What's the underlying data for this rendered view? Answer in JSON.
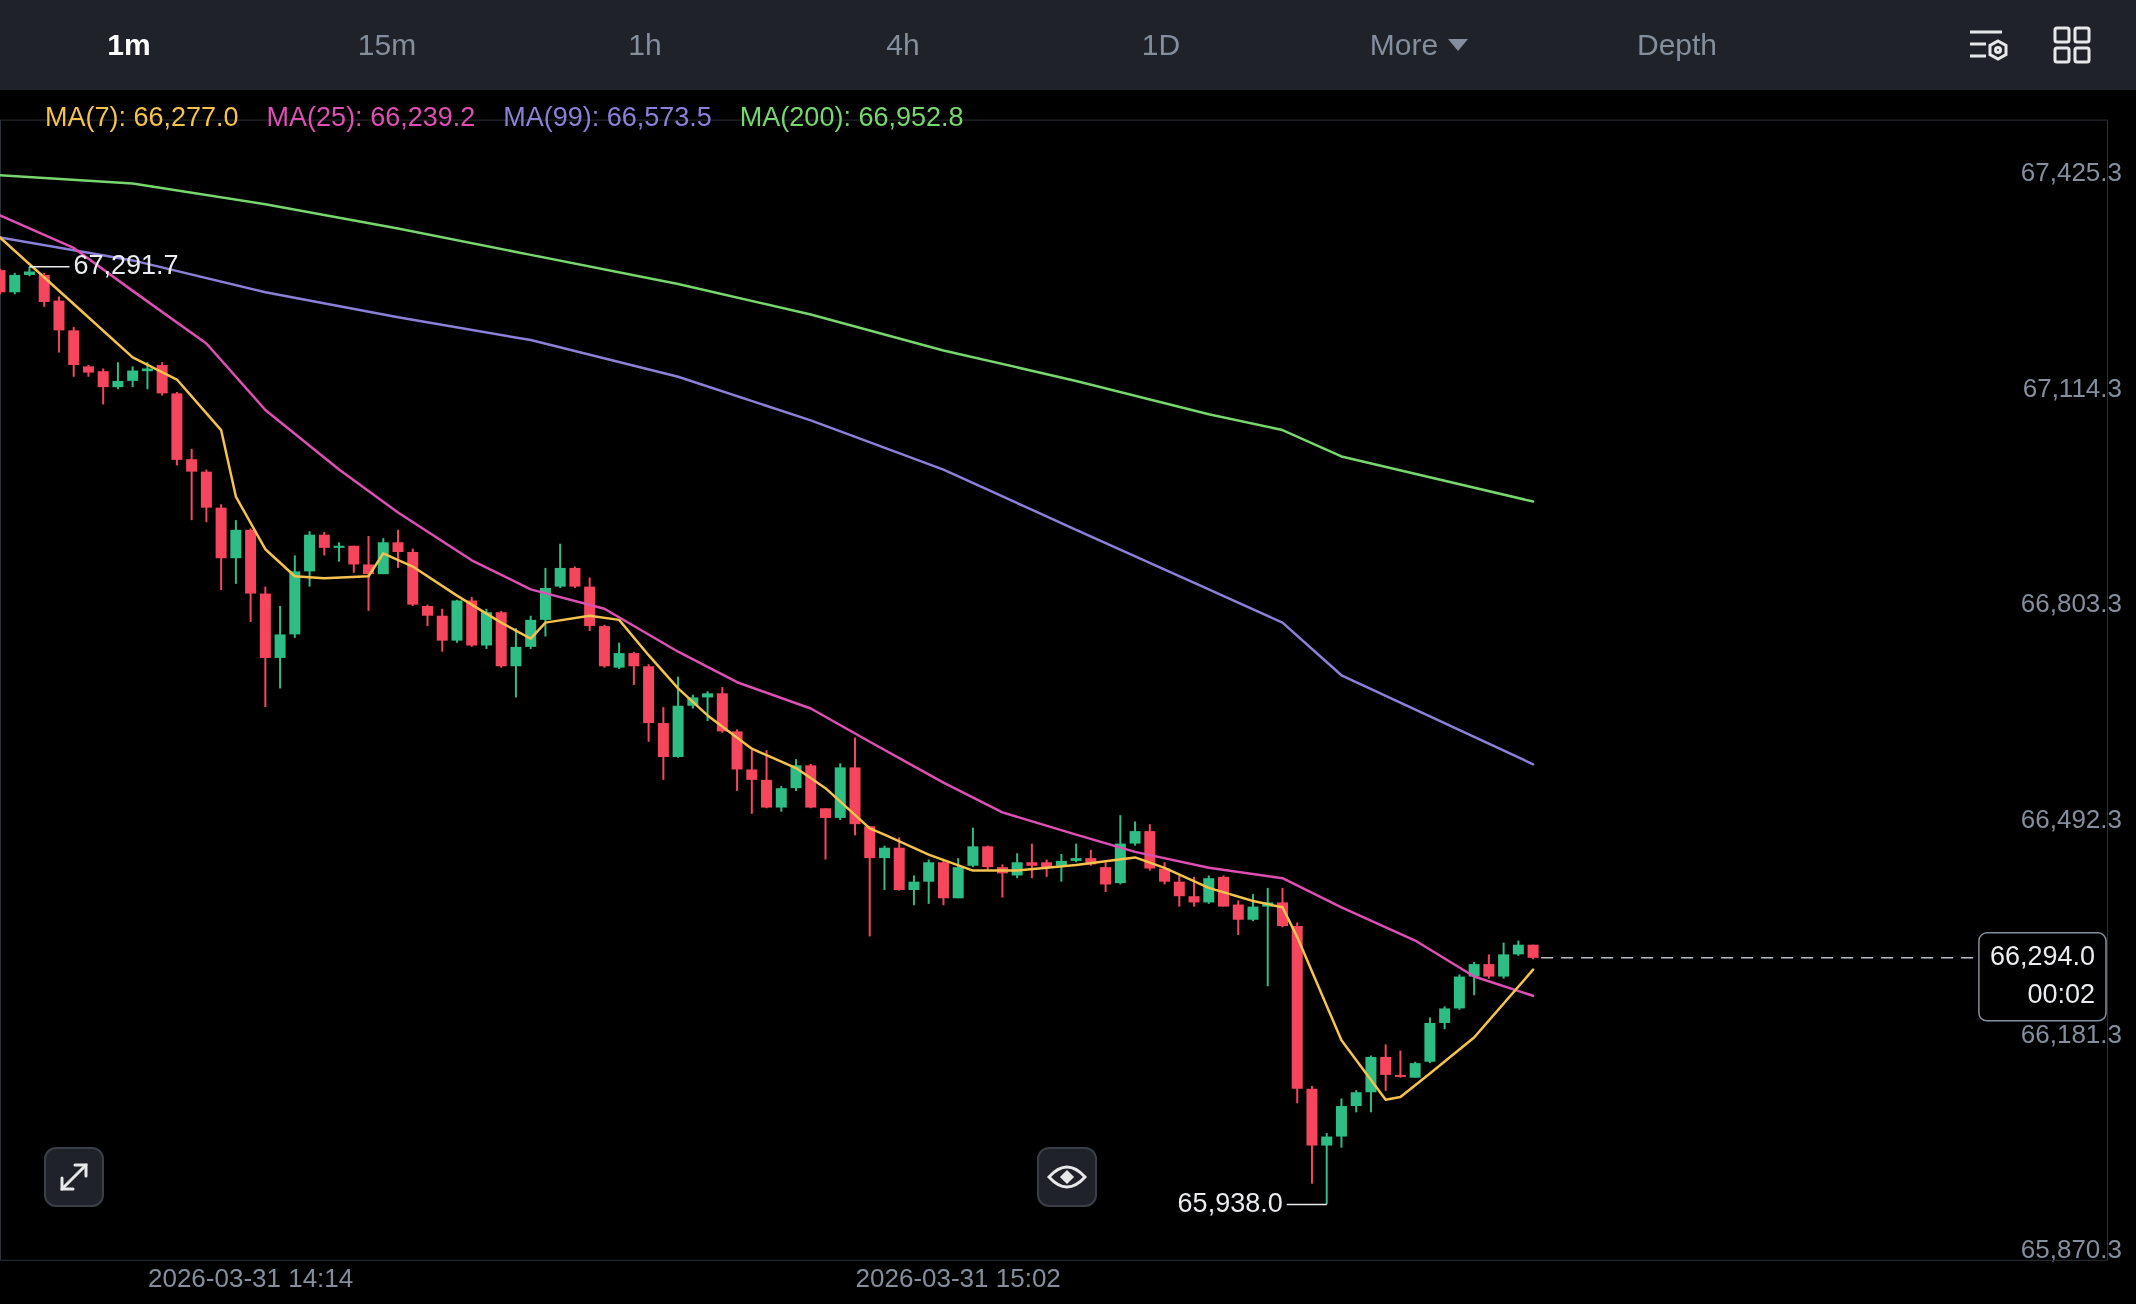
{
  "chart_data": {
    "type": "candlestick",
    "annotations": [
      "1m",
      "15m",
      "1h",
      "4h",
      "1D",
      "More",
      "Depth",
      {
        "text": "67,291.7",
        "x": "2026-03-31T13:59",
        "y": 67291.7
      },
      {
        "text": "65,938.0",
        "x": "2026-03-31T15:27",
        "y": 65938.0
      }
    ],
    "x": [
      "2026-03-31T13:57",
      "2026-03-31T13:58",
      "2026-03-31T13:59",
      "2026-03-31T14:00",
      "2026-03-31T14:01",
      "2026-03-31T14:02",
      "2026-03-31T14:03",
      "2026-03-31T14:04",
      "2026-03-31T14:05",
      "2026-03-31T14:06",
      "2026-03-31T14:07",
      "2026-03-31T14:08",
      "2026-03-31T14:09",
      "2026-03-31T14:10",
      "2026-03-31T14:11",
      "2026-03-31T14:12",
      "2026-03-31T14:13",
      "2026-03-31T14:14",
      "2026-03-31T14:15",
      "2026-03-31T14:16",
      "2026-03-31T14:17",
      "2026-03-31T14:18",
      "2026-03-31T14:19",
      "2026-03-31T14:20",
      "2026-03-31T14:21",
      "2026-03-31T14:22",
      "2026-03-31T14:23",
      "2026-03-31T14:24",
      "2026-03-31T14:25",
      "2026-03-31T14:26",
      "2026-03-31T14:27",
      "2026-03-31T14:28",
      "2026-03-31T14:29",
      "2026-03-31T14:30",
      "2026-03-31T14:31",
      "2026-03-31T14:32",
      "2026-03-31T14:33",
      "2026-03-31T14:34",
      "2026-03-31T14:35",
      "2026-03-31T14:36",
      "2026-03-31T14:37",
      "2026-03-31T14:38",
      "2026-03-31T14:39",
      "2026-03-31T14:40",
      "2026-03-31T14:41",
      "2026-03-31T14:42",
      "2026-03-31T14:43",
      "2026-03-31T14:44",
      "2026-03-31T14:45",
      "2026-03-31T14:46",
      "2026-03-31T14:47",
      "2026-03-31T14:48",
      "2026-03-31T14:49",
      "2026-03-31T14:50",
      "2026-03-31T14:51",
      "2026-03-31T14:52",
      "2026-03-31T14:53",
      "2026-03-31T14:54",
      "2026-03-31T14:55",
      "2026-03-31T14:56",
      "2026-03-31T14:57",
      "2026-03-31T14:58",
      "2026-03-31T14:59",
      "2026-03-31T15:00",
      "2026-03-31T15:01",
      "2026-03-31T15:02",
      "2026-03-31T15:03",
      "2026-03-31T15:04",
      "2026-03-31T15:05",
      "2026-03-31T15:06",
      "2026-03-31T15:07",
      "2026-03-31T15:08",
      "2026-03-31T15:09",
      "2026-03-31T15:10",
      "2026-03-31T15:11",
      "2026-03-31T15:12",
      "2026-03-31T15:13",
      "2026-03-31T15:14",
      "2026-03-31T15:15",
      "2026-03-31T15:16",
      "2026-03-31T15:17",
      "2026-03-31T15:18",
      "2026-03-31T15:19",
      "2026-03-31T15:20",
      "2026-03-31T15:21",
      "2026-03-31T15:22",
      "2026-03-31T15:23",
      "2026-03-31T15:24",
      "2026-03-31T15:25",
      "2026-03-31T15:26",
      "2026-03-31T15:27",
      "2026-03-31T15:28",
      "2026-03-31T15:29",
      "2026-03-31T15:30",
      "2026-03-31T15:31",
      "2026-03-31T15:32",
      "2026-03-31T15:33",
      "2026-03-31T15:34",
      "2026-03-31T15:35",
      "2026-03-31T15:36",
      "2026-03-31T15:37",
      "2026-03-31T15:38",
      "2026-03-31T15:39",
      "2026-03-31T15:40",
      "2026-03-31T15:41"
    ],
    "ohlc": [
      [
        67287,
        67289,
        67252,
        67255
      ],
      [
        67255,
        67283,
        67252,
        67280
      ],
      [
        67280,
        67291.7,
        67278,
        67285
      ],
      [
        67280,
        67283,
        67234,
        67241
      ],
      [
        67243,
        67249,
        67168,
        67200
      ],
      [
        67200,
        67205,
        67133,
        67150
      ],
      [
        67148,
        67150,
        67133,
        67139
      ],
      [
        67141,
        67145,
        67093,
        67118
      ],
      [
        67118,
        67154,
        67115,
        67127
      ],
      [
        67127,
        67148,
        67118,
        67142
      ],
      [
        67141,
        67154,
        67115,
        67145
      ],
      [
        67150,
        67154,
        67106,
        67109
      ],
      [
        67109,
        67111,
        67005,
        67013
      ],
      [
        67014,
        67029,
        66926,
        66996
      ],
      [
        66996,
        66999,
        66923,
        66944
      ],
      [
        66944,
        66949,
        66825,
        66871
      ],
      [
        66871,
        66926,
        66834,
        66912
      ],
      [
        66912,
        66914,
        66779,
        66820
      ],
      [
        66820,
        66830,
        66656,
        66727
      ],
      [
        66727,
        66802,
        66683,
        66761
      ],
      [
        66761,
        66875,
        66756,
        66852
      ],
      [
        66852,
        66910,
        66830,
        66905
      ],
      [
        66905,
        66909,
        66875,
        66886
      ],
      [
        66886,
        66894,
        66866,
        66889
      ],
      [
        66889,
        66889,
        66850,
        66862
      ],
      [
        66862,
        66903,
        66795,
        66848
      ],
      [
        66848,
        66900,
        66848,
        66894
      ],
      [
        66894,
        66912,
        66857,
        66880
      ],
      [
        66880,
        66885,
        66802,
        66804
      ],
      [
        66802,
        66804,
        66773,
        66788
      ],
      [
        66788,
        66798,
        66736,
        66752
      ],
      [
        66752,
        66811,
        66749,
        66810
      ],
      [
        66810,
        66815,
        66743,
        66745
      ],
      [
        66745,
        66798,
        66740,
        66793
      ],
      [
        66793,
        66795,
        66713,
        66715
      ],
      [
        66715,
        66770,
        66670,
        66743
      ],
      [
        66743,
        66788,
        66740,
        66782
      ],
      [
        66782,
        66857,
        66758,
        66828
      ],
      [
        66830,
        66892,
        66828,
        66857
      ],
      [
        66857,
        66859,
        66828,
        66830
      ],
      [
        66830,
        66843,
        66766,
        66773
      ],
      [
        66773,
        66775,
        66713,
        66715
      ],
      [
        66713,
        66749,
        66711,
        66734
      ],
      [
        66734,
        66736,
        66688,
        66715
      ],
      [
        66715,
        66718,
        66606,
        66633
      ],
      [
        66633,
        66656,
        66551,
        66584
      ],
      [
        66584,
        66700,
        66583,
        66658
      ],
      [
        66658,
        66674,
        66654,
        66670
      ],
      [
        66670,
        66679,
        66636,
        66676
      ],
      [
        66676,
        66685,
        66619,
        66621
      ],
      [
        66621,
        66624,
        66535,
        66566
      ],
      [
        66566,
        66594,
        66502,
        66551
      ],
      [
        66551,
        66594,
        66510,
        66511
      ],
      [
        66511,
        66542,
        66505,
        66539
      ],
      [
        66539,
        66581,
        66535,
        66572
      ],
      [
        66572,
        66574,
        66510,
        66511
      ],
      [
        66510,
        66510,
        66436,
        66496
      ],
      [
        66496,
        66575,
        66493,
        66569
      ],
      [
        66569,
        66612,
        66471,
        66487
      ],
      [
        66484,
        66484,
        66325,
        66438
      ],
      [
        66438,
        66456,
        66392,
        66453
      ],
      [
        66453,
        66468,
        66391,
        66392
      ],
      [
        66392,
        66413,
        66370,
        66404
      ],
      [
        66404,
        66436,
        66372,
        66432
      ],
      [
        66432,
        66436,
        66370,
        66380
      ],
      [
        66380,
        66438,
        66380,
        66425
      ],
      [
        66427,
        66482,
        66425,
        66455
      ],
      [
        66455,
        66456,
        66420,
        66425
      ],
      [
        66425,
        66429,
        66381,
        66416
      ],
      [
        66413,
        66445,
        66409,
        66432
      ],
      [
        66432,
        66459,
        66409,
        66427
      ],
      [
        66432,
        66436,
        66411,
        66425
      ],
      [
        66427,
        66444,
        66404,
        66434
      ],
      [
        66434,
        66459,
        66432,
        66438
      ],
      [
        66438,
        66450,
        66427,
        66429
      ],
      [
        66425,
        66432,
        66389,
        66400
      ],
      [
        66402,
        66500,
        66400,
        66459
      ],
      [
        66459,
        66491,
        66456,
        66477
      ],
      [
        66477,
        66487,
        66420,
        66423
      ],
      [
        66423,
        66432,
        66400,
        66404
      ],
      [
        66404,
        66413,
        66368,
        66383
      ],
      [
        66383,
        66411,
        66368,
        66374
      ],
      [
        66374,
        66413,
        66372,
        66409
      ],
      [
        66411,
        66413,
        66368,
        66368
      ],
      [
        66371,
        66377,
        66327,
        66349
      ],
      [
        66349,
        66386,
        66347,
        66368
      ],
      [
        66368,
        66395,
        66253,
        66374
      ],
      [
        66374,
        66395,
        66338,
        66340
      ],
      [
        66340,
        66345,
        66084,
        66105
      ],
      [
        66105,
        66109,
        65968,
        66023
      ],
      [
        66023,
        66041,
        65938.0,
        66036
      ],
      [
        66036,
        66091,
        66020,
        66080
      ],
      [
        66080,
        66103,
        66071,
        66100
      ],
      [
        66100,
        66153,
        66071,
        66151
      ],
      [
        66151,
        66169,
        66102,
        66125
      ],
      [
        66125,
        66160,
        66121,
        66123
      ],
      [
        66121,
        66144,
        66121,
        66142
      ],
      [
        66144,
        66208,
        66142,
        66200
      ],
      [
        66200,
        66224,
        66191,
        66221
      ],
      [
        66221,
        66270,
        66219,
        66267
      ],
      [
        66267,
        66288,
        66240,
        66285
      ],
      [
        66285,
        66299,
        66264,
        66267
      ],
      [
        66267,
        66316,
        66264,
        66299
      ],
      [
        66299,
        66319,
        66297,
        66313
      ],
      [
        66313,
        66313,
        66292,
        66294.0
      ]
    ],
    "colors": [
      "#f6465d",
      "#2ebd85",
      "#2ebd85",
      "#f6465d",
      "#f6465d",
      "#f6465d",
      "#f6465d",
      "#f6465d",
      "#2ebd85",
      "#2ebd85",
      "#2ebd85",
      "#f6465d",
      "#f6465d",
      "#f6465d",
      "#f6465d",
      "#f6465d",
      "#2ebd85",
      "#f6465d",
      "#f6465d",
      "#2ebd85",
      "#2ebd85",
      "#2ebd85",
      "#f6465d",
      "#2ebd85",
      "#f6465d",
      "#f6465d",
      "#2ebd85",
      "#f6465d",
      "#f6465d",
      "#f6465d",
      "#f6465d",
      "#2ebd85",
      "#f6465d",
      "#2ebd85",
      "#f6465d",
      "#2ebd85",
      "#2ebd85",
      "#2ebd85",
      "#2ebd85",
      "#f6465d",
      "#f6465d",
      "#f6465d",
      "#2ebd85",
      "#f6465d",
      "#f6465d",
      "#f6465d",
      "#2ebd85",
      "#2ebd85",
      "#2ebd85",
      "#f6465d",
      "#f6465d",
      "#f6465d",
      "#f6465d",
      "#2ebd85",
      "#2ebd85",
      "#f6465d",
      "#f6465d",
      "#2ebd85",
      "#f6465d",
      "#f6465d",
      "#2ebd85",
      "#f6465d",
      "#2ebd85",
      "#2ebd85",
      "#f6465d",
      "#2ebd85",
      "#2ebd85",
      "#f6465d",
      "#f6465d",
      "#2ebd85",
      "#f6465d",
      "#f6465d",
      "#2ebd85",
      "#2ebd85",
      "#f6465d",
      "#f6465d",
      "#2ebd85",
      "#2ebd85",
      "#f6465d",
      "#f6465d",
      "#f6465d",
      "#f6465d",
      "#2ebd85",
      "#f6465d",
      "#f6465d",
      "#2ebd85",
      "#2ebd85",
      "#f6465d",
      "#f6465d",
      "#f6465d",
      "#2ebd85",
      "#2ebd85",
      "#2ebd85",
      "#2ebd85",
      "#f6465d",
      "#f6465d",
      "#2ebd85",
      "#2ebd85",
      "#2ebd85",
      "#2ebd85",
      "#2ebd85",
      "#f6465d",
      "#2ebd85",
      "#2ebd85",
      "#f6465d"
    ],
    "series": [
      {
        "type": "line",
        "name": "MA(7): 66,277.0",
        "color": "#f4c24d",
        "x": [
          "2026-03-31T13:57",
          "2026-03-31T14:02",
          "2026-03-31T14:06",
          "2026-03-31T14:09",
          "2026-03-31T14:12",
          "2026-03-31T14:13",
          "2026-03-31T14:15",
          "2026-03-31T14:17",
          "2026-03-31T14:19",
          "2026-03-31T14:22",
          "2026-03-31T14:23",
          "2026-03-31T14:25",
          "2026-03-31T14:28",
          "2026-03-31T14:31",
          "2026-03-31T14:33",
          "2026-03-31T14:34",
          "2026-03-31T14:37",
          "2026-03-31T14:39",
          "2026-03-31T14:41",
          "2026-03-31T14:43",
          "2026-03-31T14:45",
          "2026-03-31T14:48",
          "2026-03-31T14:51",
          "2026-03-31T14:53",
          "2026-03-31T14:56",
          "2026-03-31T14:57",
          "2026-03-31T15:00",
          "2026-03-31T15:03",
          "2026-03-31T15:06",
          "2026-03-31T15:10",
          "2026-03-31T15:14",
          "2026-03-31T15:16",
          "2026-03-31T15:19",
          "2026-03-31T15:22",
          "2026-03-31T15:24",
          "2026-03-31T15:25",
          "2026-03-31T15:28",
          "2026-03-31T15:31",
          "2026-03-31T15:32",
          "2026-03-31T15:34",
          "2026-03-31T15:37",
          "2026-03-31T15:41"
        ],
        "values": [
          67334,
          67238,
          67161,
          67129,
          67056,
          66960,
          66884,
          66845,
          66842,
          66845,
          66878,
          66859,
          66817,
          66778,
          66755,
          66778,
          66788,
          66782,
          66731,
          66683,
          66644,
          66596,
          66568,
          66539,
          66481,
          66472,
          66443,
          66420,
          66420,
          66428,
          66439,
          66424,
          66395,
          66376,
          66367,
          66324,
          66175,
          66089,
          66093,
          66127,
          66179,
          66277.0
        ]
      },
      {
        "type": "line",
        "name": "MA(25): 66,239.2",
        "color": "#dd4fb3",
        "x": [
          "2026-03-31T13:57",
          "2026-03-31T14:02",
          "2026-03-31T14:06",
          "2026-03-31T14:11",
          "2026-03-31T14:15",
          "2026-03-31T14:20",
          "2026-03-31T14:24",
          "2026-03-31T14:29",
          "2026-03-31T14:33",
          "2026-03-31T14:38",
          "2026-03-31T14:43",
          "2026-03-31T14:47",
          "2026-03-31T14:52",
          "2026-03-31T14:56",
          "2026-03-31T15:01",
          "2026-03-31T15:05",
          "2026-03-31T15:10",
          "2026-03-31T15:14",
          "2026-03-31T15:19",
          "2026-03-31T15:24",
          "2026-03-31T15:28",
          "2026-03-31T15:33",
          "2026-03-31T15:37",
          "2026-03-31T15:41"
        ],
        "values": [
          67366,
          67319,
          67257,
          67181,
          67085,
          66999,
          66937,
          66868,
          66826,
          66798,
          66736,
          66692,
          66654,
          66606,
          66547,
          66504,
          66472,
          66447,
          66424,
          66409,
          66367,
          66319,
          66267,
          66239.2
        ]
      },
      {
        "type": "line",
        "name": "MA(99): 66,573.5",
        "color": "#8b80d8",
        "x": [
          "2026-03-31T13:57",
          "2026-03-31T14:06",
          "2026-03-31T14:15",
          "2026-03-31T14:24",
          "2026-03-31T14:33",
          "2026-03-31T14:43",
          "2026-03-31T14:52",
          "2026-03-31T15:01",
          "2026-03-31T15:10",
          "2026-03-31T15:19",
          "2026-03-31T15:24",
          "2026-03-31T15:28",
          "2026-03-31T15:41"
        ],
        "values": [
          67334,
          67301,
          67255,
          67219,
          67186,
          67133,
          67070,
          66999,
          66912,
          66826,
          66778,
          66702,
          66573.5
        ]
      },
      {
        "type": "line",
        "name": "MA(200): 66,952.8",
        "color": "#78d66e",
        "x": [
          "2026-03-31T13:57",
          "2026-03-31T14:06",
          "2026-03-31T14:15",
          "2026-03-31T14:24",
          "2026-03-31T14:33",
          "2026-03-31T14:43",
          "2026-03-31T14:52",
          "2026-03-31T15:01",
          "2026-03-31T15:10",
          "2026-03-31T15:19",
          "2026-03-31T15:24",
          "2026-03-31T15:28",
          "2026-03-31T15:41"
        ],
        "values": [
          67424,
          67412,
          67382,
          67347,
          67309,
          67267,
          67223,
          67171,
          67127,
          67079,
          67056,
          67018,
          66952.8
        ]
      }
    ],
    "xlim": [
      "2026-03-31T13:57",
      "2026-03-31T16:20"
    ],
    "xticks": [
      {
        "value": "2026-03-31T14:14",
        "label": "2026-03-31 14:14"
      },
      {
        "value": "2026-03-31T15:02",
        "label": "2026-03-31 15:02"
      }
    ],
    "ylim": [
      65856.6,
      67504.3
    ],
    "yticks": [
      {
        "value": 65870.3,
        "label": "65,870.3"
      },
      {
        "value": 66181.3,
        "label": "66,181.3"
      },
      {
        "value": 66492.3,
        "label": "66,492.3"
      },
      {
        "value": 66803.3,
        "label": "66,803.3"
      },
      {
        "value": 67114.3,
        "label": "67,114.3"
      },
      {
        "value": 67425.3,
        "label": "67,425.3"
      }
    ],
    "ref_lines": [
      {
        "axis": "y",
        "value": 66294.0,
        "label": "66,294.0\n00:02",
        "color": "#b7bdc6",
        "line_style": "dashed"
      }
    ],
    "legend": "top left",
    "grid": false,
    "marker": "none"
  }
}
